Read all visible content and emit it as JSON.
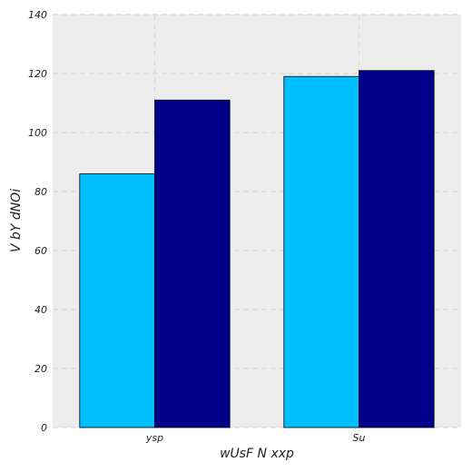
{
  "chart_data": {
    "type": "bar",
    "categories": [
      "ysp",
      "Su"
    ],
    "series": [
      {
        "values": [
          86,
          119
        ],
        "color": "#00bfff"
      },
      {
        "values": [
          111,
          121
        ],
        "color": "#00008b"
      }
    ],
    "xlabel": "wUsF N xxp",
    "ylabel": "V bY dNOi",
    "ylim": [
      0,
      140
    ],
    "yticks": [
      0,
      20,
      40,
      60,
      80,
      100,
      120,
      140
    ],
    "grid": true,
    "plot_background": "#ececec",
    "grid_color": "#d9d9d9",
    "bar_edge_color": "#000000"
  }
}
